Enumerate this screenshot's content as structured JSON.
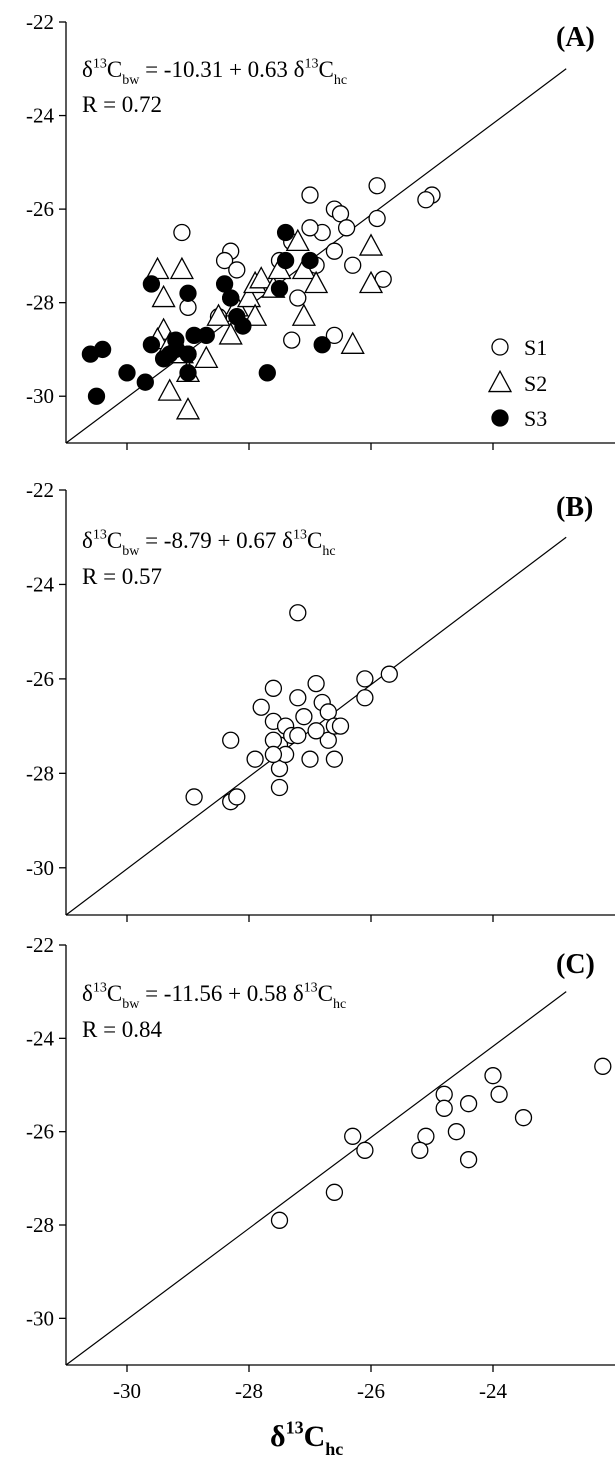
{
  "chart_data": [
    {
      "type": "scatter",
      "panel_label": "(A)",
      "equation": {
        "lhs": "C",
        "lhs_sub": "bw",
        "rhs_prefix": " = -10.31 + 0.63 ",
        "rhs_sub": "hc",
        "delta": "δ",
        "sup": "13"
      },
      "r_text": "R = 0.72",
      "xlim": [
        -31,
        -22
      ],
      "ylim": [
        -31,
        -22
      ],
      "y_ticks": [
        -22,
        -24,
        -26,
        -28,
        -30
      ],
      "fit_line": {
        "intercept": -10.31,
        "slope": 0.63
      },
      "legend": [
        {
          "name": "S1",
          "marker": "circle-open"
        },
        {
          "name": "S2",
          "marker": "triangle-open"
        },
        {
          "name": "S3",
          "marker": "circle-filled"
        }
      ],
      "series": [
        {
          "name": "S1",
          "points": [
            [
              -25.0,
              -25.7
            ],
            [
              -25.1,
              -25.8
            ],
            [
              -25.9,
              -25.5
            ],
            [
              -25.9,
              -26.2
            ],
            [
              -25.8,
              -27.5
            ],
            [
              -26.6,
              -26.0
            ],
            [
              -26.5,
              -26.1
            ],
            [
              -26.4,
              -26.4
            ],
            [
              -26.3,
              -27.2
            ],
            [
              -26.6,
              -26.9
            ],
            [
              -26.8,
              -26.5
            ],
            [
              -26.9,
              -27.2
            ],
            [
              -27.0,
              -25.7
            ],
            [
              -27.0,
              -26.4
            ],
            [
              -27.3,
              -26.7
            ],
            [
              -27.2,
              -27.9
            ],
            [
              -27.3,
              -28.8
            ],
            [
              -26.6,
              -28.7
            ],
            [
              -27.5,
              -27.1
            ],
            [
              -28.3,
              -26.9
            ],
            [
              -28.4,
              -27.1
            ],
            [
              -28.2,
              -27.3
            ],
            [
              -28.3,
              -27.9
            ],
            [
              -28.0,
              -28.2
            ],
            [
              -28.5,
              -28.3
            ],
            [
              -29.1,
              -26.5
            ],
            [
              -29.0,
              -28.1
            ],
            [
              -29.0,
              -29.1
            ]
          ]
        },
        {
          "name": "S2",
          "points": [
            [
              -29.5,
              -27.3
            ],
            [
              -29.1,
              -27.3
            ],
            [
              -29.4,
              -27.9
            ],
            [
              -29.4,
              -28.6
            ],
            [
              -29.5,
              -28.8
            ],
            [
              -29.3,
              -28.9
            ],
            [
              -29.1,
              -29.1
            ],
            [
              -29.0,
              -29.5
            ],
            [
              -29.3,
              -29.9
            ],
            [
              -29.0,
              -30.3
            ],
            [
              -28.7,
              -29.2
            ],
            [
              -28.5,
              -28.3
            ],
            [
              -28.2,
              -28.1
            ],
            [
              -28.0,
              -27.9
            ],
            [
              -27.9,
              -27.6
            ],
            [
              -27.8,
              -27.5
            ],
            [
              -27.6,
              -27.7
            ],
            [
              -27.5,
              -27.3
            ],
            [
              -27.2,
              -26.7
            ],
            [
              -27.1,
              -27.3
            ],
            [
              -26.9,
              -27.6
            ],
            [
              -27.1,
              -28.3
            ],
            [
              -28.3,
              -28.7
            ],
            [
              -26.3,
              -28.9
            ],
            [
              -26.0,
              -27.6
            ],
            [
              -26.0,
              -26.8
            ],
            [
              -27.9,
              -28.3
            ]
          ]
        },
        {
          "name": "S3",
          "points": [
            [
              -30.6,
              -29.1
            ],
            [
              -30.4,
              -29.0
            ],
            [
              -30.5,
              -30.0
            ],
            [
              -30.0,
              -29.5
            ],
            [
              -29.7,
              -29.7
            ],
            [
              -29.6,
              -28.9
            ],
            [
              -29.4,
              -29.2
            ],
            [
              -29.3,
              -29.1
            ],
            [
              -29.2,
              -29.0
            ],
            [
              -29.0,
              -29.1
            ],
            [
              -28.9,
              -28.7
            ],
            [
              -29.0,
              -27.8
            ],
            [
              -29.0,
              -29.5
            ],
            [
              -28.4,
              -27.6
            ],
            [
              -28.3,
              -27.9
            ],
            [
              -28.2,
              -28.3
            ],
            [
              -28.1,
              -28.5
            ],
            [
              -27.7,
              -29.5
            ],
            [
              -27.5,
              -27.7
            ],
            [
              -27.4,
              -27.1
            ],
            [
              -27.4,
              -26.5
            ],
            [
              -27.0,
              -27.1
            ],
            [
              -26.8,
              -28.9
            ],
            [
              -29.6,
              -27.6
            ],
            [
              -28.7,
              -28.7
            ],
            [
              -29.2,
              -28.8
            ]
          ]
        }
      ]
    },
    {
      "type": "scatter",
      "panel_label": "(B)",
      "equation": {
        "lhs": "C",
        "lhs_sub": "bw",
        "rhs_prefix": " = -8.79 + 0.67 ",
        "rhs_sub": "hc",
        "delta": "δ",
        "sup": "13"
      },
      "r_text": "R = 0.57",
      "xlim": [
        -31,
        -22
      ],
      "ylim": [
        -31,
        -22
      ],
      "y_ticks": [
        -22,
        -24,
        -26,
        -28,
        -30
      ],
      "fit_line": {
        "intercept": -8.79,
        "slope": 0.67
      },
      "series": [
        {
          "name": "S1",
          "points": [
            [
              -27.2,
              -24.6
            ],
            [
              -25.7,
              -25.9
            ],
            [
              -26.1,
              -26.0
            ],
            [
              -26.1,
              -26.4
            ],
            [
              -26.9,
              -26.1
            ],
            [
              -27.2,
              -26.4
            ],
            [
              -27.6,
              -26.2
            ],
            [
              -27.8,
              -26.6
            ],
            [
              -27.6,
              -26.9
            ],
            [
              -27.5,
              -27.4
            ],
            [
              -27.5,
              -27.9
            ],
            [
              -27.5,
              -28.3
            ],
            [
              -27.4,
              -27.0
            ],
            [
              -27.3,
              -27.2
            ],
            [
              -27.1,
              -26.8
            ],
            [
              -26.8,
              -26.5
            ],
            [
              -26.7,
              -26.7
            ],
            [
              -26.7,
              -27.3
            ],
            [
              -26.6,
              -27.0
            ],
            [
              -26.5,
              -27.0
            ],
            [
              -26.6,
              -27.7
            ],
            [
              -27.0,
              -27.7
            ],
            [
              -27.2,
              -27.2
            ],
            [
              -26.9,
              -27.1
            ],
            [
              -27.4,
              -27.6
            ],
            [
              -27.6,
              -27.3
            ],
            [
              -27.9,
              -27.7
            ],
            [
              -28.3,
              -27.3
            ],
            [
              -28.9,
              -28.5
            ],
            [
              -28.3,
              -28.6
            ],
            [
              -28.2,
              -28.5
            ],
            [
              -27.6,
              -27.6
            ]
          ]
        }
      ]
    },
    {
      "type": "scatter",
      "panel_label": "(C)",
      "equation": {
        "lhs": "C",
        "lhs_sub": "bw",
        "rhs_prefix": " = -11.56 + 0.58 ",
        "rhs_sub": "hc",
        "delta": "δ",
        "sup": "13"
      },
      "r_text": "R = 0.84",
      "xlim": [
        -31,
        -22
      ],
      "ylim": [
        -31,
        -22
      ],
      "x_ticks": [
        -30,
        -28,
        -26,
        -24
      ],
      "y_ticks": [
        -22,
        -24,
        -26,
        -28,
        -30
      ],
      "xlabel": {
        "delta": "δ",
        "sup": "13",
        "main": "C",
        "sub": "hc"
      },
      "fit_line": {
        "intercept": -11.56,
        "slope": 0.58
      },
      "series": [
        {
          "name": "S1",
          "points": [
            [
              -22.2,
              -24.6
            ],
            [
              -24.0,
              -24.8
            ],
            [
              -24.8,
              -25.2
            ],
            [
              -24.8,
              -25.5
            ],
            [
              -24.4,
              -25.4
            ],
            [
              -23.9,
              -25.2
            ],
            [
              -23.5,
              -25.7
            ],
            [
              -24.6,
              -26.0
            ],
            [
              -24.4,
              -26.6
            ],
            [
              -25.1,
              -26.1
            ],
            [
              -25.2,
              -26.4
            ],
            [
              -26.3,
              -26.1
            ],
            [
              -26.1,
              -26.4
            ],
            [
              -26.6,
              -27.3
            ],
            [
              -27.5,
              -27.9
            ]
          ]
        }
      ]
    }
  ]
}
